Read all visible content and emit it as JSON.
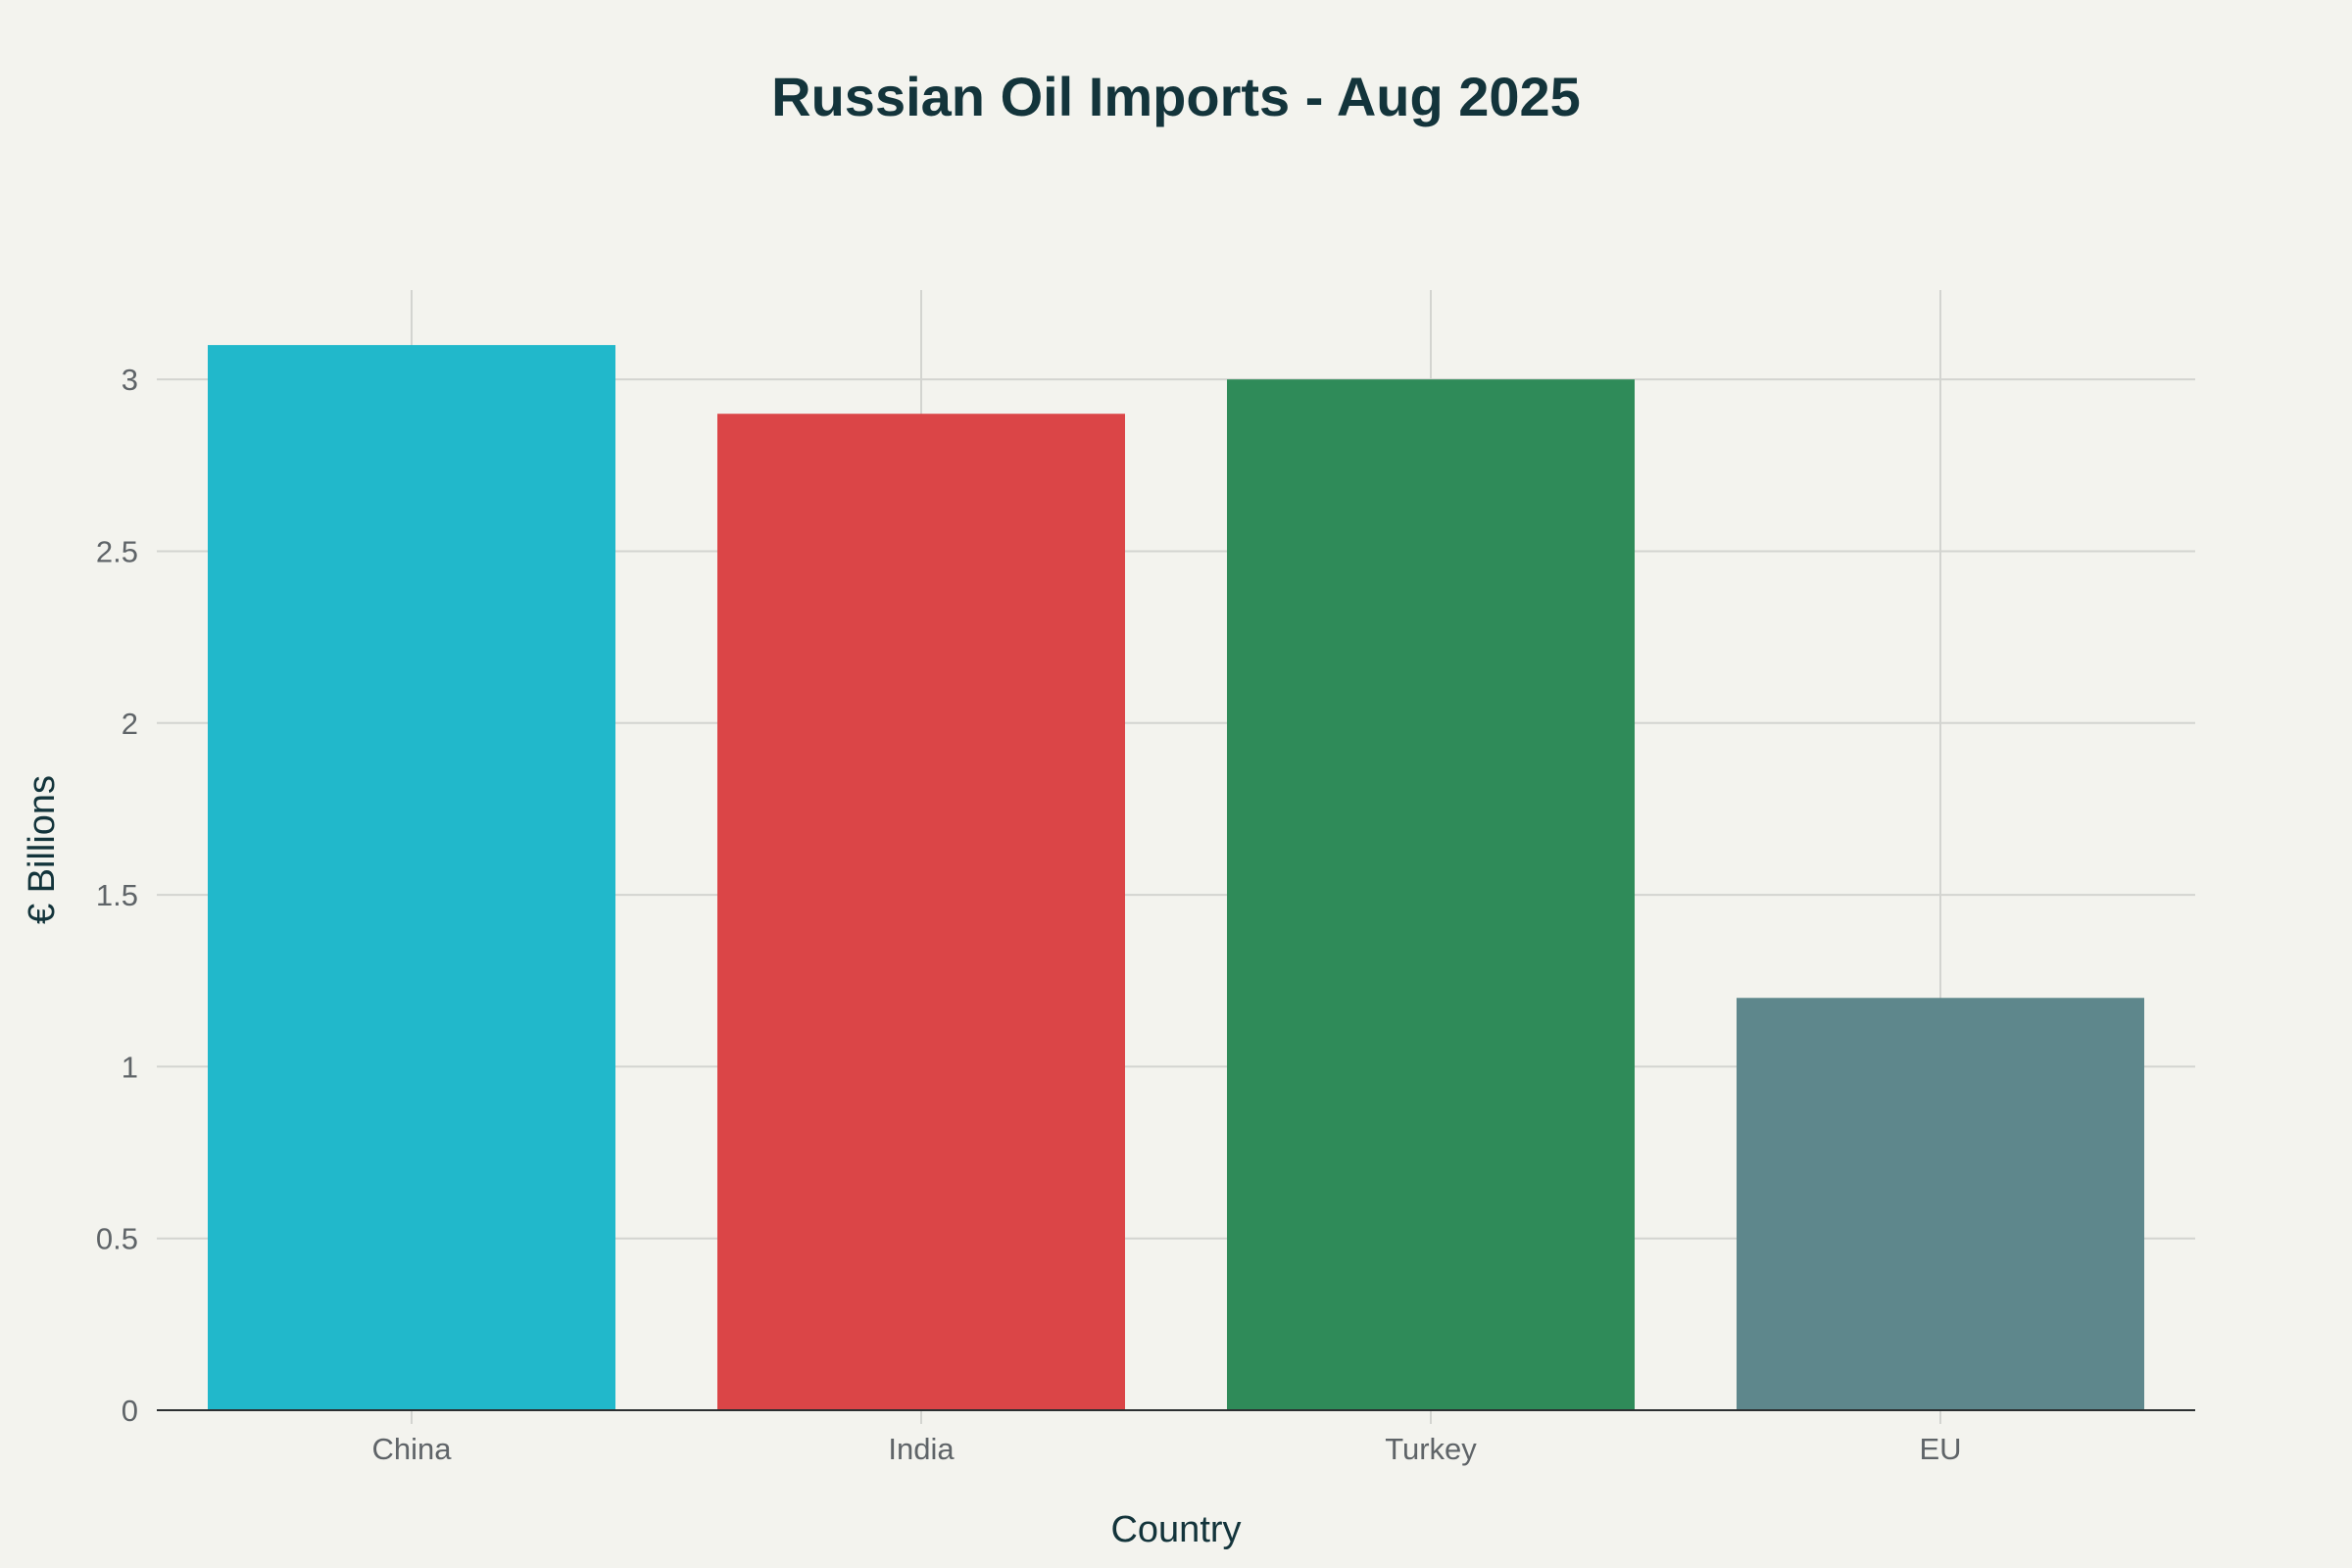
{
  "chart_data": {
    "type": "bar",
    "title": "Russian Oil Imports - Aug 2025",
    "xlabel": "Country",
    "ylabel": "€ Billions",
    "categories": [
      "China",
      "India",
      "Turkey",
      "EU"
    ],
    "values": [
      3.1,
      2.9,
      3.0,
      1.2
    ],
    "colors": [
      "#21b8cb",
      "#db4547",
      "#2f8b59",
      "#5e878c"
    ],
    "ylim": [
      0,
      3.26
    ],
    "yticks": [
      0,
      0.5,
      1,
      1.5,
      2,
      2.5,
      3
    ],
    "ytick_labels": [
      "0",
      "0.5",
      "1",
      "1.5",
      "2",
      "2.5",
      "3"
    ],
    "grid": true,
    "legend": "none"
  }
}
